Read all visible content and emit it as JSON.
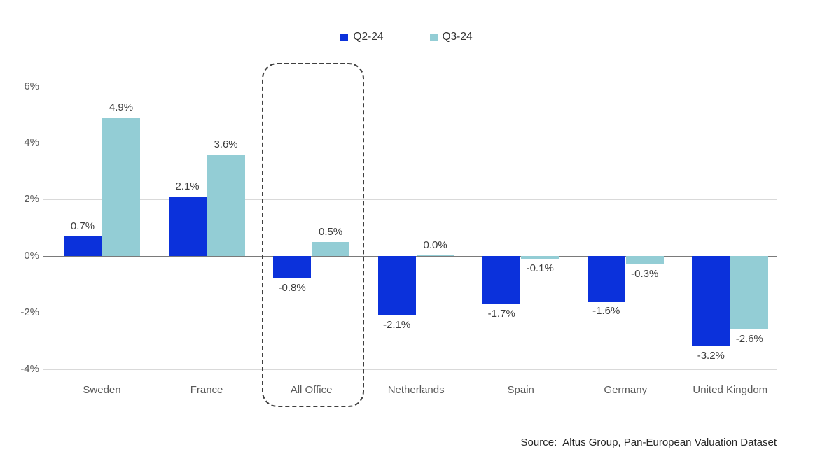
{
  "chart_data": {
    "type": "bar",
    "title": "",
    "xlabel": "",
    "ylabel": "",
    "categories": [
      "Sweden",
      "France",
      "All Office",
      "Netherlands",
      "Spain",
      "Germany",
      "United Kingdom"
    ],
    "series": [
      {
        "name": "Q2-24",
        "color": "#0b31db",
        "values": [
          0.7,
          2.1,
          -0.8,
          -2.1,
          -1.7,
          -1.6,
          -3.2
        ],
        "labels": [
          "0.7%",
          "2.1%",
          "-0.8%",
          "-2.1%",
          "-1.7%",
          "-1.6%",
          "-3.2%"
        ]
      },
      {
        "name": "Q3-24",
        "color": "#93cdd5",
        "values": [
          4.9,
          3.6,
          0.5,
          0.0,
          -0.1,
          -0.3,
          -2.6
        ],
        "labels": [
          "4.9%",
          "3.6%",
          "0.5%",
          "0.0%",
          "-0.1%",
          "-0.3%",
          "-2.6%"
        ]
      }
    ],
    "ylim": [
      -4,
      6
    ],
    "yticks": [
      {
        "value": 6,
        "label": "6%"
      },
      {
        "value": 4,
        "label": "4%"
      },
      {
        "value": 2,
        "label": "2%"
      },
      {
        "value": 0,
        "label": "0%"
      },
      {
        "value": -2,
        "label": "-2%"
      },
      {
        "value": -4,
        "label": "-4%"
      }
    ],
    "grid": true,
    "legend_position": "top-center",
    "highlight_category": "All Office"
  },
  "colors": {
    "q2_bar": "#0b31db",
    "q3_bar": "#93cdd5",
    "gridline": "#d9d9d9",
    "zero_line": "#7a7a7a",
    "axis_text": "#595959",
    "data_label_text": "#3d3d3d",
    "highlight_border": "#3f3f3f",
    "background": "#ffffff"
  },
  "source_note": {
    "label": "Source:",
    "text": "Altus Group, Pan-European Valuation Dataset"
  }
}
